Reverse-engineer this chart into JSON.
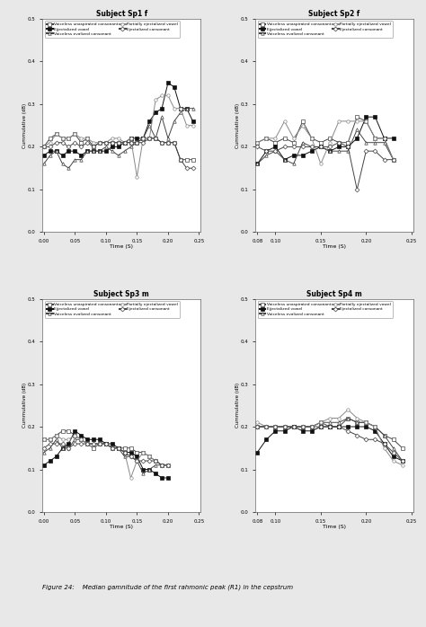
{
  "titles": [
    "Subject Sp1 f",
    "Subject Sp2 f",
    "Subject Sp3 m",
    "Subject Sp4 m"
  ],
  "xlabel": "Time (S)",
  "ylabel": "Cummulative (dB)",
  "ylim": [
    0.0,
    0.5
  ],
  "yticks": [
    0.0,
    0.1,
    0.2,
    0.3,
    0.4,
    0.5
  ],
  "background_color": "#e8e8e8",
  "plot_bg_color": "#ffffff",
  "figure_caption": "Figure 24:    Median gamnitude of the first rahmonic peak (R1) in the cepstrum",
  "sp1": {
    "xlim": [
      0.0,
      0.25
    ],
    "xtick_vals": [
      0.0,
      0.05,
      0.1,
      0.15,
      0.2,
      0.25
    ],
    "xtick_labels": [
      "0.00",
      "0.05",
      "0.10",
      "0.15",
      "0.20",
      "0.25"
    ],
    "series": {
      "voiceless_unaspirated": {
        "x": [
          0.0,
          0.01,
          0.02,
          0.03,
          0.04,
          0.05,
          0.06,
          0.07,
          0.08,
          0.09,
          0.1,
          0.11,
          0.12,
          0.13,
          0.14,
          0.15,
          0.16,
          0.17,
          0.18,
          0.19,
          0.2,
          0.21,
          0.22,
          0.23,
          0.24
        ],
        "y": [
          0.2,
          0.22,
          0.23,
          0.22,
          0.22,
          0.23,
          0.21,
          0.22,
          0.2,
          0.21,
          0.21,
          0.21,
          0.21,
          0.21,
          0.21,
          0.21,
          0.22,
          0.22,
          0.22,
          0.21,
          0.21,
          0.21,
          0.17,
          0.17,
          0.17
        ],
        "marker": "s",
        "filled": false,
        "color": "#444444"
      },
      "ejectalized_vowel": {
        "x": [
          0.0,
          0.01,
          0.02,
          0.03,
          0.04,
          0.05,
          0.06,
          0.07,
          0.08,
          0.09,
          0.1,
          0.11,
          0.12,
          0.13,
          0.14,
          0.15,
          0.16,
          0.17,
          0.18,
          0.19,
          0.2,
          0.21,
          0.22,
          0.23,
          0.24
        ],
        "y": [
          0.18,
          0.19,
          0.19,
          0.18,
          0.19,
          0.19,
          0.18,
          0.19,
          0.19,
          0.19,
          0.19,
          0.2,
          0.2,
          0.21,
          0.22,
          0.22,
          0.22,
          0.26,
          0.28,
          0.29,
          0.35,
          0.34,
          0.29,
          0.29,
          0.26
        ],
        "marker": "s",
        "filled": true,
        "color": "#111111"
      },
      "voiceless_evalized": {
        "x": [
          0.0,
          0.01,
          0.02,
          0.03,
          0.04,
          0.05,
          0.06,
          0.07,
          0.08,
          0.09,
          0.1,
          0.11,
          0.12,
          0.13,
          0.14,
          0.15,
          0.16,
          0.17,
          0.18,
          0.19,
          0.2,
          0.21,
          0.22,
          0.23,
          0.24
        ],
        "y": [
          0.16,
          0.18,
          0.19,
          0.16,
          0.15,
          0.17,
          0.17,
          0.19,
          0.19,
          0.19,
          0.2,
          0.19,
          0.18,
          0.19,
          0.2,
          0.21,
          0.22,
          0.25,
          0.22,
          0.27,
          0.22,
          0.26,
          0.28,
          0.29,
          0.29
        ],
        "marker": "^",
        "filled": false,
        "color": "#444444"
      },
      "partially_ejectalized": {
        "x": [
          0.0,
          0.01,
          0.02,
          0.03,
          0.04,
          0.05,
          0.06,
          0.07,
          0.08,
          0.09,
          0.1,
          0.11,
          0.12,
          0.13,
          0.14,
          0.15,
          0.16,
          0.17,
          0.18,
          0.19,
          0.2,
          0.21,
          0.22,
          0.23,
          0.24
        ],
        "y": [
          0.2,
          0.21,
          0.23,
          0.22,
          0.22,
          0.23,
          0.22,
          0.22,
          0.21,
          0.21,
          0.21,
          0.22,
          0.22,
          0.21,
          0.22,
          0.13,
          0.22,
          0.22,
          0.31,
          0.32,
          0.32,
          0.29,
          0.29,
          0.25,
          0.25
        ],
        "marker": "o",
        "filled": false,
        "color": "#888888"
      },
      "ejectalized_consonant": {
        "x": [
          0.0,
          0.01,
          0.02,
          0.03,
          0.04,
          0.05,
          0.06,
          0.07,
          0.08,
          0.09,
          0.1,
          0.11,
          0.12,
          0.13,
          0.14,
          0.15,
          0.16,
          0.17,
          0.18,
          0.19,
          0.2,
          0.21,
          0.22,
          0.23,
          0.24
        ],
        "y": [
          0.2,
          0.2,
          0.21,
          0.21,
          0.2,
          0.21,
          0.2,
          0.21,
          0.2,
          0.21,
          0.21,
          0.21,
          0.21,
          0.21,
          0.21,
          0.21,
          0.21,
          0.22,
          0.22,
          0.21,
          0.21,
          0.21,
          0.17,
          0.15,
          0.15
        ],
        "marker": "D",
        "filled": false,
        "color": "#444444"
      }
    }
  },
  "sp2": {
    "xlim": [
      0.08,
      0.25
    ],
    "xtick_vals": [
      0.08,
      0.1,
      0.15,
      0.2,
      0.25
    ],
    "xtick_labels": [
      "0.08",
      "0.10",
      "0.15",
      "0.20",
      "0.25"
    ],
    "series": {
      "voiceless_unaspirated": {
        "x": [
          0.08,
          0.09,
          0.1,
          0.11,
          0.12,
          0.13,
          0.14,
          0.15,
          0.16,
          0.17,
          0.18,
          0.19,
          0.2,
          0.21,
          0.22,
          0.23
        ],
        "y": [
          0.21,
          0.22,
          0.21,
          0.22,
          0.21,
          0.26,
          0.22,
          0.21,
          0.22,
          0.21,
          0.21,
          0.27,
          0.26,
          0.22,
          0.22,
          0.17
        ],
        "marker": "s",
        "filled": false,
        "color": "#444444"
      },
      "ejectalized_vowel": {
        "x": [
          0.08,
          0.09,
          0.1,
          0.11,
          0.12,
          0.13,
          0.14,
          0.15,
          0.16,
          0.17,
          0.18,
          0.19,
          0.2,
          0.21,
          0.22,
          0.23
        ],
        "y": [
          0.16,
          0.19,
          0.2,
          0.17,
          0.18,
          0.18,
          0.19,
          0.2,
          0.19,
          0.2,
          0.2,
          0.22,
          0.27,
          0.27,
          0.22,
          0.22
        ],
        "marker": "s",
        "filled": true,
        "color": "#111111"
      },
      "voiceless_evalized": {
        "x": [
          0.08,
          0.09,
          0.1,
          0.11,
          0.12,
          0.13,
          0.14,
          0.15,
          0.16,
          0.17,
          0.18,
          0.19,
          0.2,
          0.21,
          0.22,
          0.23
        ],
        "y": [
          0.16,
          0.18,
          0.19,
          0.17,
          0.16,
          0.21,
          0.2,
          0.2,
          0.19,
          0.19,
          0.19,
          0.24,
          0.21,
          0.21,
          0.21,
          0.17
        ],
        "marker": "^",
        "filled": false,
        "color": "#444444"
      },
      "partially_ejectalized": {
        "x": [
          0.08,
          0.09,
          0.1,
          0.11,
          0.12,
          0.13,
          0.14,
          0.15,
          0.16,
          0.17,
          0.18,
          0.19,
          0.2,
          0.21,
          0.22,
          0.23
        ],
        "y": [
          0.21,
          0.22,
          0.22,
          0.26,
          0.22,
          0.25,
          0.22,
          0.16,
          0.21,
          0.26,
          0.26,
          0.26,
          0.26,
          0.22,
          0.22,
          0.17
        ],
        "marker": "o",
        "filled": false,
        "color": "#888888"
      },
      "ejectalized_consonant": {
        "x": [
          0.08,
          0.09,
          0.1,
          0.11,
          0.12,
          0.13,
          0.14,
          0.15,
          0.16,
          0.17,
          0.18,
          0.19,
          0.2,
          0.21,
          0.22,
          0.23
        ],
        "y": [
          0.2,
          0.19,
          0.19,
          0.2,
          0.2,
          0.2,
          0.2,
          0.2,
          0.2,
          0.21,
          0.2,
          0.1,
          0.19,
          0.19,
          0.17,
          0.17
        ],
        "marker": "D",
        "filled": false,
        "color": "#444444"
      }
    }
  },
  "sp3": {
    "xlim": [
      0.0,
      0.25
    ],
    "xtick_vals": [
      0.0,
      0.05,
      0.1,
      0.15,
      0.2,
      0.25
    ],
    "xtick_labels": [
      "0.00",
      "0.05",
      "0.10",
      "0.15",
      "0.20",
      "0.25"
    ],
    "series": {
      "voiceless_unaspirated": {
        "x": [
          0.0,
          0.01,
          0.02,
          0.03,
          0.04,
          0.05,
          0.06,
          0.07,
          0.08,
          0.09,
          0.1,
          0.11,
          0.12,
          0.13,
          0.14,
          0.15,
          0.16,
          0.17,
          0.18,
          0.19,
          0.2
        ],
        "y": [
          0.17,
          0.17,
          0.18,
          0.19,
          0.19,
          0.18,
          0.17,
          0.16,
          0.15,
          0.16,
          0.16,
          0.15,
          0.15,
          0.15,
          0.15,
          0.14,
          0.14,
          0.13,
          0.12,
          0.11,
          0.11
        ],
        "marker": "s",
        "filled": false,
        "color": "#444444"
      },
      "ejectalized_vowel": {
        "x": [
          0.0,
          0.01,
          0.02,
          0.03,
          0.04,
          0.05,
          0.06,
          0.07,
          0.08,
          0.09,
          0.1,
          0.11,
          0.12,
          0.13,
          0.14,
          0.15,
          0.16,
          0.17,
          0.18,
          0.19,
          0.2
        ],
        "y": [
          0.11,
          0.12,
          0.13,
          0.15,
          0.16,
          0.19,
          0.18,
          0.17,
          0.17,
          0.17,
          0.16,
          0.16,
          0.15,
          0.14,
          0.14,
          0.13,
          0.1,
          0.1,
          0.09,
          0.08,
          0.08
        ],
        "marker": "s",
        "filled": true,
        "color": "#111111"
      },
      "voiceless_evalized": {
        "x": [
          0.0,
          0.01,
          0.02,
          0.03,
          0.04,
          0.05,
          0.06,
          0.07,
          0.08,
          0.09,
          0.1,
          0.11,
          0.12,
          0.13,
          0.14,
          0.15,
          0.16,
          0.17,
          0.18,
          0.19,
          0.2
        ],
        "y": [
          0.14,
          0.15,
          0.17,
          0.15,
          0.15,
          0.17,
          0.17,
          0.16,
          0.16,
          0.16,
          0.16,
          0.15,
          0.15,
          0.13,
          0.13,
          0.12,
          0.09,
          0.1,
          0.11,
          0.11,
          0.11
        ],
        "marker": "^",
        "filled": false,
        "color": "#444444"
      },
      "partially_ejectalized": {
        "x": [
          0.0,
          0.01,
          0.02,
          0.03,
          0.04,
          0.05,
          0.06,
          0.07,
          0.08,
          0.09,
          0.1,
          0.11,
          0.12,
          0.13,
          0.14,
          0.15,
          0.16,
          0.17,
          0.18,
          0.19,
          0.2
        ],
        "y": [
          0.17,
          0.17,
          0.18,
          0.17,
          0.17,
          0.18,
          0.17,
          0.16,
          0.16,
          0.16,
          0.16,
          0.15,
          0.15,
          0.14,
          0.08,
          0.12,
          0.14,
          0.13,
          0.12,
          0.11,
          0.11
        ],
        "marker": "o",
        "filled": false,
        "color": "#888888"
      },
      "ejectalized_consonant": {
        "x": [
          0.0,
          0.01,
          0.02,
          0.03,
          0.04,
          0.05,
          0.06,
          0.07,
          0.08,
          0.09,
          0.1,
          0.11,
          0.12,
          0.13,
          0.14,
          0.15,
          0.16,
          0.17,
          0.18,
          0.19,
          0.2
        ],
        "y": [
          0.15,
          0.16,
          0.16,
          0.16,
          0.15,
          0.16,
          0.16,
          0.16,
          0.16,
          0.16,
          0.16,
          0.15,
          0.15,
          0.14,
          0.13,
          0.12,
          0.12,
          0.12,
          0.12,
          0.11,
          0.11
        ],
        "marker": "D",
        "filled": false,
        "color": "#444444"
      }
    }
  },
  "sp4": {
    "xlim": [
      0.08,
      0.25
    ],
    "xtick_vals": [
      0.08,
      0.1,
      0.15,
      0.2,
      0.25
    ],
    "xtick_labels": [
      "0.08",
      "0.10",
      "0.15",
      "0.20",
      "0.25"
    ],
    "series": {
      "voiceless_unaspirated": {
        "x": [
          0.08,
          0.09,
          0.1,
          0.11,
          0.12,
          0.13,
          0.14,
          0.15,
          0.16,
          0.17,
          0.18,
          0.19,
          0.2,
          0.21,
          0.22,
          0.23,
          0.24
        ],
        "y": [
          0.2,
          0.2,
          0.2,
          0.2,
          0.2,
          0.2,
          0.2,
          0.21,
          0.2,
          0.2,
          0.22,
          0.21,
          0.21,
          0.2,
          0.18,
          0.17,
          0.15
        ],
        "marker": "s",
        "filled": false,
        "color": "#444444"
      },
      "ejectalized_vowel": {
        "x": [
          0.08,
          0.09,
          0.1,
          0.11,
          0.12,
          0.13,
          0.14,
          0.15,
          0.16,
          0.17,
          0.18,
          0.19,
          0.2,
          0.21,
          0.22,
          0.23,
          0.24
        ],
        "y": [
          0.14,
          0.17,
          0.19,
          0.19,
          0.2,
          0.19,
          0.19,
          0.2,
          0.2,
          0.2,
          0.2,
          0.2,
          0.2,
          0.19,
          0.16,
          0.13,
          0.12
        ],
        "marker": "s",
        "filled": true,
        "color": "#111111"
      },
      "voiceless_evalized": {
        "x": [
          0.08,
          0.09,
          0.1,
          0.11,
          0.12,
          0.13,
          0.14,
          0.15,
          0.16,
          0.17,
          0.18,
          0.19,
          0.2,
          0.21,
          0.22,
          0.23,
          0.24
        ],
        "y": [
          0.2,
          0.2,
          0.2,
          0.2,
          0.2,
          0.2,
          0.2,
          0.21,
          0.21,
          0.21,
          0.22,
          0.21,
          0.21,
          0.2,
          0.18,
          0.15,
          0.12
        ],
        "marker": "^",
        "filled": false,
        "color": "#444444"
      },
      "partially_ejectalized": {
        "x": [
          0.08,
          0.09,
          0.1,
          0.11,
          0.12,
          0.13,
          0.14,
          0.15,
          0.16,
          0.17,
          0.18,
          0.19,
          0.2,
          0.21,
          0.22,
          0.23,
          0.24
        ],
        "y": [
          0.21,
          0.2,
          0.2,
          0.2,
          0.2,
          0.2,
          0.2,
          0.21,
          0.22,
          0.22,
          0.24,
          0.22,
          0.21,
          0.2,
          0.15,
          0.12,
          0.11
        ],
        "marker": "o",
        "filled": false,
        "color": "#888888"
      },
      "ejectalized_consonant": {
        "x": [
          0.08,
          0.09,
          0.1,
          0.11,
          0.12,
          0.13,
          0.14,
          0.15,
          0.16,
          0.17,
          0.18,
          0.19,
          0.2,
          0.21,
          0.22,
          0.23,
          0.24
        ],
        "y": [
          0.2,
          0.2,
          0.2,
          0.2,
          0.2,
          0.2,
          0.2,
          0.2,
          0.2,
          0.2,
          0.19,
          0.18,
          0.17,
          0.17,
          0.16,
          0.14,
          0.12
        ],
        "marker": "D",
        "filled": false,
        "color": "#444444"
      }
    }
  }
}
